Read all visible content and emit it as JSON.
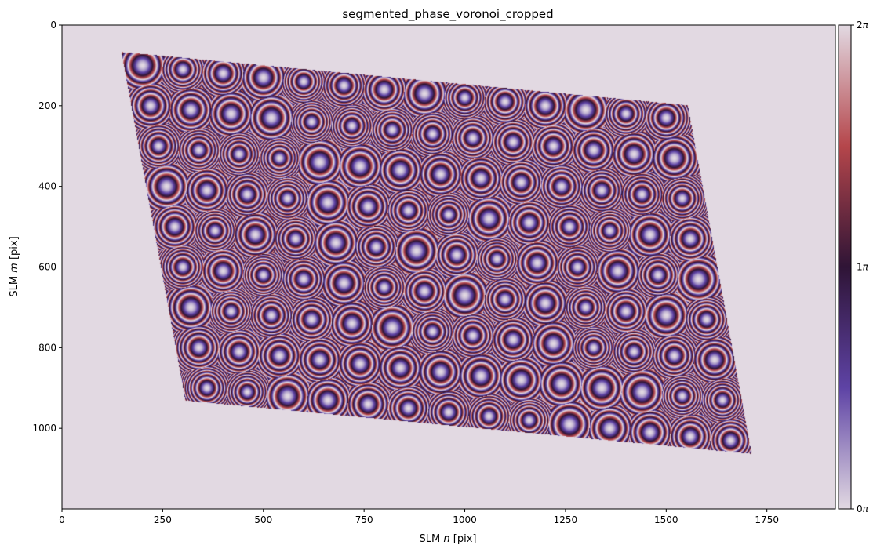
{
  "chart_data": {
    "type": "heatmap",
    "title": "segmented_phase_voronoi_cropped",
    "xlabel": "SLM $n$ [pix]",
    "ylabel": "SLM $m$ [pix]",
    "xlabel_parts": {
      "pre": "SLM ",
      "var": "n",
      "post": " [pix]"
    },
    "ylabel_parts": {
      "pre": "SLM ",
      "var": "m",
      "post": " [pix]"
    },
    "xlim": [
      0,
      1920
    ],
    "ylim": [
      1200,
      0
    ],
    "x_ticks": [
      0,
      250,
      500,
      750,
      1000,
      1250,
      1500,
      1750
    ],
    "x_tick_labels": [
      "0",
      "250",
      "500",
      "750",
      "1000",
      "1250",
      "1500",
      "1750"
    ],
    "y_ticks": [
      0,
      200,
      400,
      600,
      800,
      1000
    ],
    "y_tick_labels": [
      "0",
      "200",
      "400",
      "600",
      "800",
      "1000"
    ],
    "colorbar": {
      "range": [
        0,
        6.283185307
      ],
      "ticks": [
        0,
        3.141592654,
        6.283185307
      ],
      "tick_labels": [
        {
          "num": "0",
          "sym": "π"
        },
        {
          "num": "1",
          "sym": "π"
        },
        {
          "num": "2",
          "sym": "π"
        }
      ],
      "colormap": "twilight",
      "colormap_stops": [
        "#e2d9e2",
        "#5e43a5",
        "#2f1436",
        "#b5464b",
        "#e2d9e2"
      ]
    },
    "background_phase": 0,
    "lattice": {
      "rows": 9,
      "cols": 14,
      "row_pitch": 100,
      "col_pitch": 100,
      "origin": [
        200,
        100
      ],
      "row_shear": 20,
      "col_shear": 10
    }
  }
}
